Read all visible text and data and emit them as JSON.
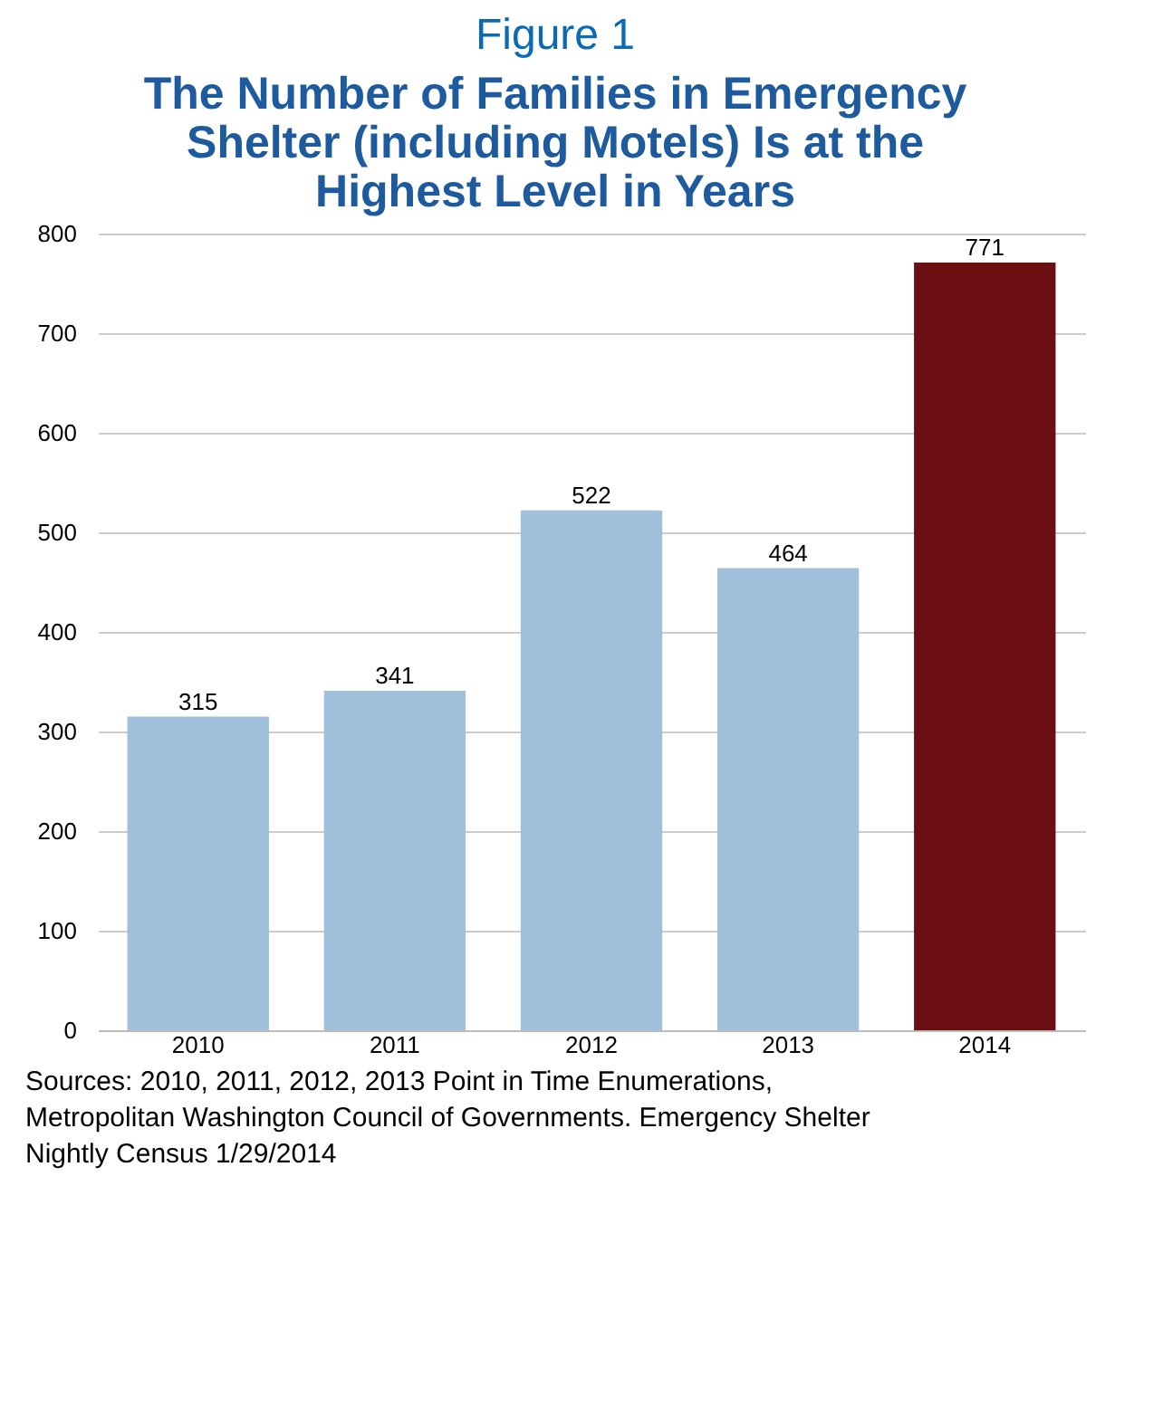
{
  "chart_data": {
    "type": "bar",
    "title": "Figure 1",
    "subtitle": "The Number of Families in Emergency Shelter (including Motels) Is at the Highest Level in Years",
    "categories": [
      "2010",
      "2011",
      "2012",
      "2013",
      "2014"
    ],
    "values": [
      315,
      341,
      522,
      464,
      771
    ],
    "colors": [
      "#9fbfdb",
      "#9fbfdb",
      "#9fbfdb",
      "#9fbfdb",
      "#6b0f12"
    ],
    "ylim": [
      0,
      800
    ],
    "yticks": [
      0,
      100,
      200,
      300,
      400,
      500,
      600,
      700,
      800
    ],
    "grid": "y",
    "data_labels": true,
    "annotations": [
      "Sources:  2010, 2011, 2012, 2013 Point in Time Enumerations, Metropolitan Washington Council of Governments. Emergency Shelter Nightly Census 1/29/2014"
    ]
  }
}
